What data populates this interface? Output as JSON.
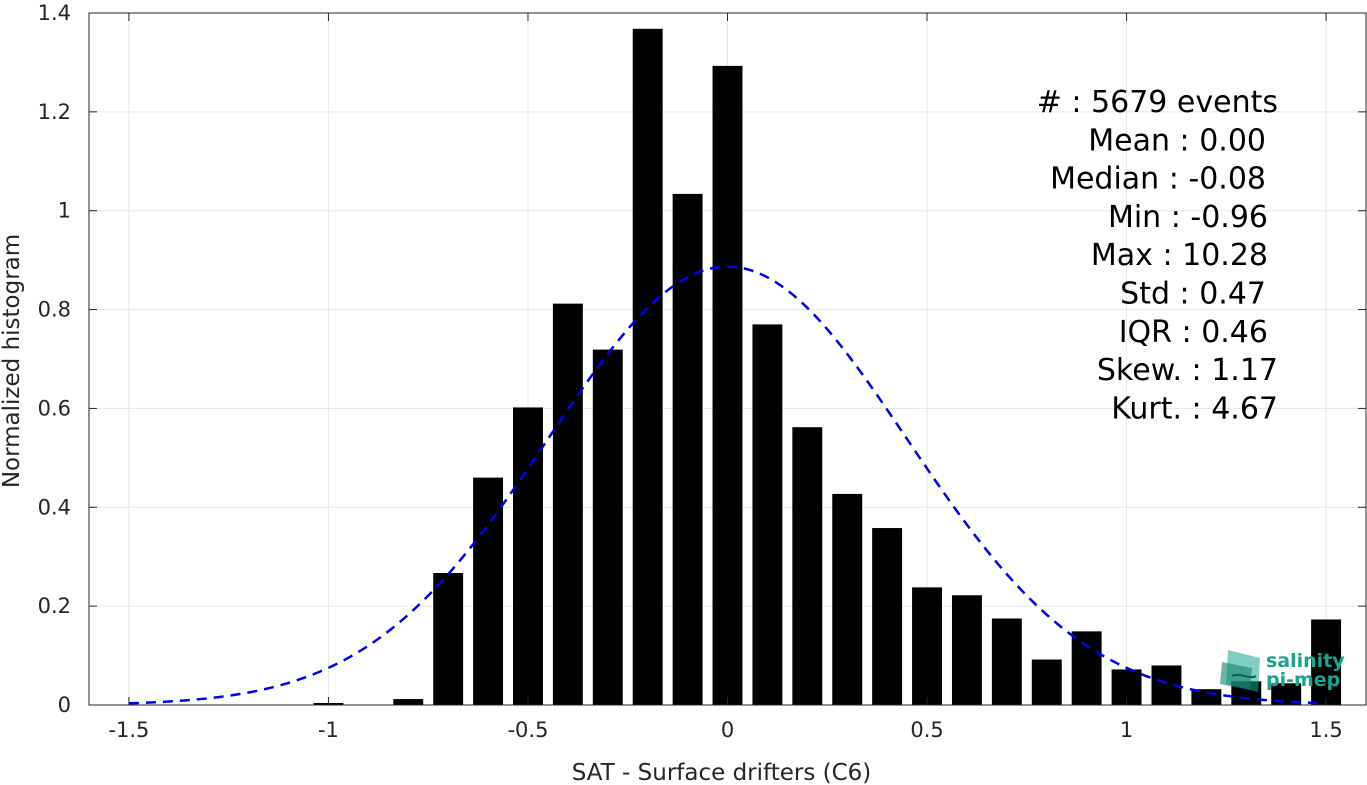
{
  "chart_data": {
    "type": "bar",
    "title": "",
    "xlabel": "SAT - Surface drifters (C6)",
    "ylabel": "Normalized histogram",
    "xlim": [
      -1.6,
      1.6
    ],
    "ylim": [
      0,
      1.4
    ],
    "xticks": [
      -1.5,
      -1,
      -0.5,
      0,
      0.5,
      1,
      1.5
    ],
    "xtick_labels": [
      "-1.5",
      "-1",
      "-0.5",
      "0",
      "0.5",
      "1",
      "1.5"
    ],
    "yticks": [
      0,
      0.2,
      0.4,
      0.6,
      0.8,
      1,
      1.2,
      1.4
    ],
    "ytick_labels": [
      "0",
      "0.2",
      "0.4",
      "0.6",
      "0.8",
      "1",
      "1.2",
      "1.4"
    ],
    "grid": true,
    "bar_color": "#000000",
    "bar_width": 0.075,
    "bars": {
      "x": [
        -1.0,
        -0.8,
        -0.7,
        -0.6,
        -0.5,
        -0.4,
        -0.3,
        -0.2,
        -0.1,
        0.0,
        0.1,
        0.2,
        0.3,
        0.4,
        0.5,
        0.6,
        0.7,
        0.8,
        0.9,
        1.0,
        1.1,
        1.2,
        1.3,
        1.4,
        1.5
      ],
      "values": [
        0.004,
        0.012,
        0.267,
        0.46,
        0.602,
        0.812,
        0.719,
        1.368,
        1.034,
        1.293,
        0.77,
        0.562,
        0.427,
        0.358,
        0.238,
        0.222,
        0.175,
        0.092,
        0.149,
        0.072,
        0.08,
        0.032,
        0.048,
        0.044,
        0.173
      ]
    },
    "fit_curve": {
      "style": "dashed",
      "color": "#0000ee",
      "mean": 0.0,
      "std": 0.45,
      "peak": 0.887,
      "x_range": [
        -1.5,
        1.5
      ]
    },
    "stats": [
      {
        "label": "#  : 5679 events"
      },
      {
        "label": "Mean : 0.00"
      },
      {
        "label": "Median : -0.08"
      },
      {
        "label": "Min : -0.96"
      },
      {
        "label": "Max : 10.28"
      },
      {
        "label": "Std : 0.47"
      },
      {
        "label": "IQR : 0.46"
      },
      {
        "label": "Skew. : 1.17"
      },
      {
        "label": "Kurt. : 4.67"
      }
    ]
  },
  "logo": {
    "line1": "salinity",
    "line2": "pi-mep",
    "color": "#1aa58f"
  }
}
